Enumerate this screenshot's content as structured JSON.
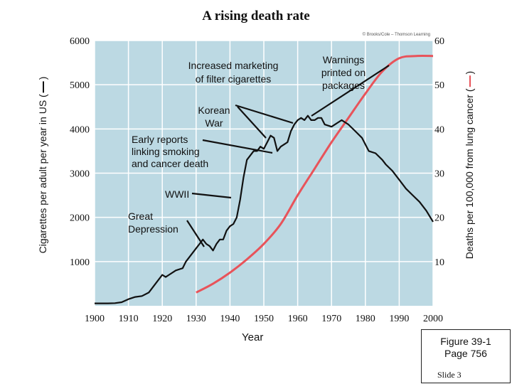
{
  "title": "A rising death rate",
  "y_left_label": "Cigarettes per adult per year in US (",
  "y_left_label_close": ")",
  "y_right_label": "Deaths per 100,000 from lung cancer (",
  "y_right_label_close": ")",
  "x_label": "Year",
  "copyright": "© Brooks/Cole – Thomson Learning",
  "figure_ref": {
    "line1": "Figure 39-1",
    "line2": "Page 756",
    "slide": "Slide 3"
  },
  "colors": {
    "plot_bg": "#bcd9e3",
    "grid": "#ffffff",
    "cigarettes": "#111111",
    "deaths": "#e8535a"
  },
  "chart_data": {
    "type": "line",
    "x": {
      "label": "Year",
      "range": [
        1900,
        2000
      ],
      "ticks": [
        "1900",
        "1910",
        "1920",
        "1930",
        "1940",
        "1950",
        "1960",
        "1970",
        "1980",
        "1990",
        "2000"
      ]
    },
    "y_left": {
      "label": "Cigarettes per adult per year in US",
      "range": [
        0,
        6000
      ],
      "ticks": [
        "1000",
        "2000",
        "3000",
        "4000",
        "5000",
        "6000"
      ]
    },
    "y_right": {
      "label": "Deaths per 100,000 from lung cancer",
      "range": [
        0,
        60
      ],
      "ticks": [
        "10",
        "20",
        "30",
        "40",
        "50",
        "60"
      ]
    },
    "grid": true,
    "series": [
      {
        "name": "Cigarettes per adult per year in US",
        "axis": "left",
        "color": "#111111",
        "points": [
          [
            1900,
            54
          ],
          [
            1904,
            54
          ],
          [
            1906,
            60
          ],
          [
            1908,
            80
          ],
          [
            1910,
            150
          ],
          [
            1912,
            200
          ],
          [
            1914,
            220
          ],
          [
            1916,
            300
          ],
          [
            1918,
            500
          ],
          [
            1920,
            700
          ],
          [
            1921,
            650
          ],
          [
            1922,
            700
          ],
          [
            1924,
            800
          ],
          [
            1926,
            850
          ],
          [
            1927,
            1000
          ],
          [
            1928,
            1100
          ],
          [
            1930,
            1300
          ],
          [
            1931,
            1400
          ],
          [
            1932,
            1500
          ],
          [
            1933,
            1400
          ],
          [
            1934,
            1350
          ],
          [
            1935,
            1250
          ],
          [
            1936,
            1400
          ],
          [
            1937,
            1500
          ],
          [
            1938,
            1500
          ],
          [
            1939,
            1700
          ],
          [
            1940,
            1800
          ],
          [
            1941,
            1850
          ],
          [
            1942,
            2000
          ],
          [
            1943,
            2400
          ],
          [
            1944,
            2900
          ],
          [
            1945,
            3300
          ],
          [
            1946,
            3400
          ],
          [
            1947,
            3500
          ],
          [
            1948,
            3500
          ],
          [
            1949,
            3600
          ],
          [
            1950,
            3550
          ],
          [
            1951,
            3700
          ],
          [
            1952,
            3850
          ],
          [
            1953,
            3800
          ],
          [
            1954,
            3500
          ],
          [
            1955,
            3600
          ],
          [
            1956,
            3650
          ],
          [
            1957,
            3700
          ],
          [
            1958,
            3950
          ],
          [
            1959,
            4100
          ],
          [
            1960,
            4200
          ],
          [
            1961,
            4250
          ],
          [
            1962,
            4200
          ],
          [
            1963,
            4300
          ],
          [
            1964,
            4200
          ],
          [
            1965,
            4200
          ],
          [
            1966,
            4250
          ],
          [
            1967,
            4250
          ],
          [
            1968,
            4100
          ],
          [
            1970,
            4050
          ],
          [
            1971,
            4100
          ],
          [
            1972,
            4150
          ],
          [
            1973,
            4200
          ],
          [
            1974,
            4150
          ],
          [
            1975,
            4100
          ],
          [
            1977,
            3950
          ],
          [
            1979,
            3800
          ],
          [
            1980,
            3650
          ],
          [
            1981,
            3500
          ],
          [
            1983,
            3450
          ],
          [
            1985,
            3300
          ],
          [
            1986,
            3200
          ],
          [
            1988,
            3050
          ],
          [
            1990,
            2850
          ],
          [
            1992,
            2650
          ],
          [
            1994,
            2500
          ],
          [
            1996,
            2350
          ],
          [
            1998,
            2150
          ],
          [
            2000,
            1900
          ]
        ]
      },
      {
        "name": "Deaths per 100,000 from lung cancer",
        "axis": "right",
        "color": "#e8535a",
        "points": [
          [
            1930,
            3
          ],
          [
            1935,
            5
          ],
          [
            1940,
            7.5
          ],
          [
            1945,
            10.5
          ],
          [
            1950,
            14
          ],
          [
            1955,
            18.5
          ],
          [
            1960,
            25
          ],
          [
            1965,
            31
          ],
          [
            1970,
            37
          ],
          [
            1975,
            42.5
          ],
          [
            1980,
            48
          ],
          [
            1985,
            53
          ],
          [
            1990,
            56
          ],
          [
            1995,
            56.5
          ],
          [
            2000,
            56.5
          ]
        ]
      }
    ],
    "annotations": [
      {
        "id": "marketing",
        "lines": [
          "Increased marketing",
          "of filter cigarettes"
        ]
      },
      {
        "id": "warnings",
        "lines": [
          "Warnings",
          "printed on",
          "packages"
        ]
      },
      {
        "id": "korean",
        "lines": [
          "Korean",
          "War"
        ]
      },
      {
        "id": "early",
        "lines": [
          "Early reports",
          "linking smoking",
          "and cancer death"
        ]
      },
      {
        "id": "wwii",
        "lines": [
          "WWII"
        ]
      },
      {
        "id": "depression",
        "lines": [
          "Great",
          "Depression"
        ]
      }
    ]
  }
}
